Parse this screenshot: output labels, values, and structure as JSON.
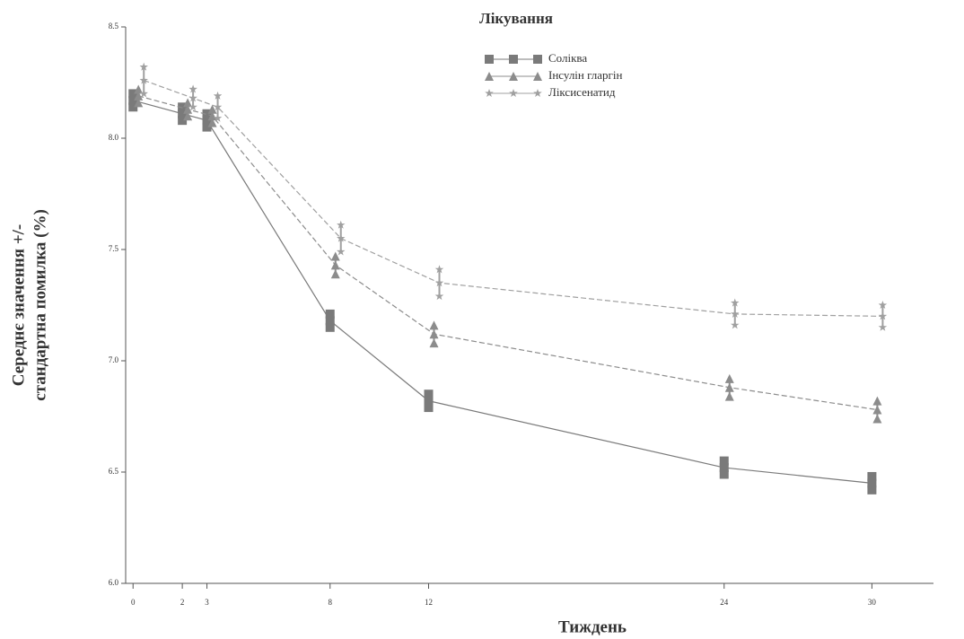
{
  "chart_data": {
    "type": "line",
    "legend_title": "Лікування",
    "xlabel": "Тиждень",
    "ylabel": [
      "Середнє значення +/-",
      "стандартна помилка (%)"
    ],
    "x": [
      0,
      2,
      3,
      8,
      12,
      24,
      30
    ],
    "xlim": [
      -0.3,
      32.5
    ],
    "xticks": [
      0,
      2,
      3,
      8,
      12,
      24,
      30
    ],
    "ylim": [
      6.0,
      8.5
    ],
    "yticks": [
      {
        "value": 6,
        "label": "6.0"
      },
      6.5,
      {
        "value": 7,
        "label": "7.0"
      },
      7.5,
      {
        "value": 8,
        "label": "8.0"
      },
      8.5
    ],
    "legend": "top-center",
    "series": [
      {
        "name": "Соліква",
        "color": "#7a7a7a",
        "marker": "square",
        "values": [
          8.17,
          8.11,
          8.08,
          7.18,
          6.82,
          6.52,
          6.45
        ],
        "errors": [
          0.03,
          0.03,
          0.03,
          0.03,
          0.03,
          0.03,
          0.03
        ]
      },
      {
        "name": "Інсулін гларгін",
        "color": "#8c8c8c",
        "marker": "triangle",
        "values": [
          8.19,
          8.13,
          8.1,
          7.43,
          7.12,
          6.88,
          6.78
        ],
        "errors": [
          0.03,
          0.03,
          0.03,
          0.04,
          0.04,
          0.04,
          0.04
        ]
      },
      {
        "name": "Ліксисенатид",
        "color": "#a0a0a0",
        "marker": "star",
        "values": [
          8.26,
          8.18,
          8.14,
          7.55,
          7.35,
          7.21,
          7.2
        ],
        "errors": [
          0.06,
          0.04,
          0.05,
          0.06,
          0.06,
          0.05,
          0.05
        ]
      }
    ]
  }
}
